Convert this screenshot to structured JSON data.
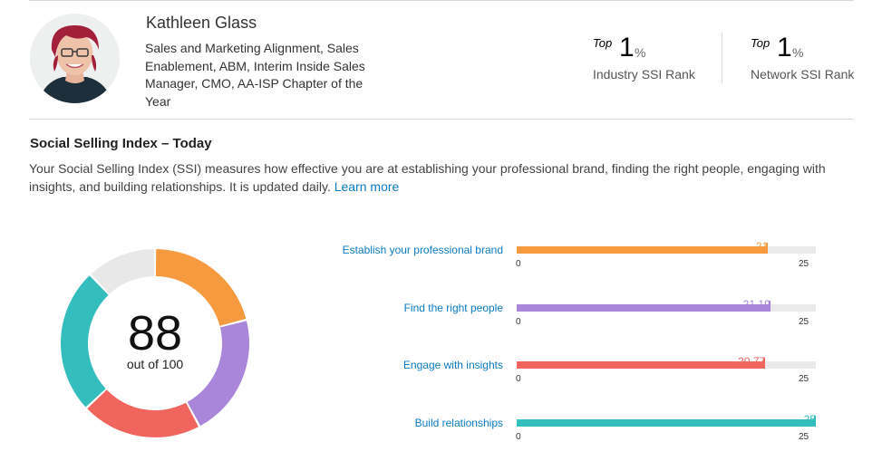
{
  "profile": {
    "name": "Kathleen Glass",
    "headline": "Sales and Marketing Alignment, Sales Enablement, ABM, Interim Inside Sales Manager, CMO, AA-ISP Chapter of the Year",
    "avatar_icon": "profile-photo"
  },
  "ranks": [
    {
      "top_word": "Top",
      "value": "1",
      "unit": "%",
      "label": "Industry SSI Rank"
    },
    {
      "top_word": "Top",
      "value": "1",
      "unit": "%",
      "label": "Network SSI Rank"
    }
  ],
  "ssi": {
    "title": "Social Selling Index – Today",
    "description": "Your Social Selling Index (SSI) measures how effective you are at establishing your professional brand, finding the right people, engaging with insights, and building relationships. It is updated daily.",
    "learn_more": "Learn more",
    "score": "88",
    "score_sub": "out of 100",
    "max_total": 100
  },
  "components": [
    {
      "label": "Establish your professional brand",
      "value": 21,
      "display": "21",
      "min": "0",
      "max": "25",
      "max_value": 25,
      "color": "#f59a3e"
    },
    {
      "label": "Find the right people",
      "value": 21.19,
      "display": "21.19",
      "min": "0",
      "max": "25",
      "max_value": 25,
      "color": "#a986d9"
    },
    {
      "label": "Engage with insights",
      "value": 20.77,
      "display": "20.77",
      "min": "0",
      "max": "25",
      "max_value": 25,
      "color": "#f0665e"
    },
    {
      "label": "Build relationships",
      "value": 25,
      "display": "25",
      "min": "0",
      "max": "25",
      "max_value": 25,
      "color": "#33bdbd"
    }
  ],
  "donut_remainder_color": "#e8e8e8"
}
